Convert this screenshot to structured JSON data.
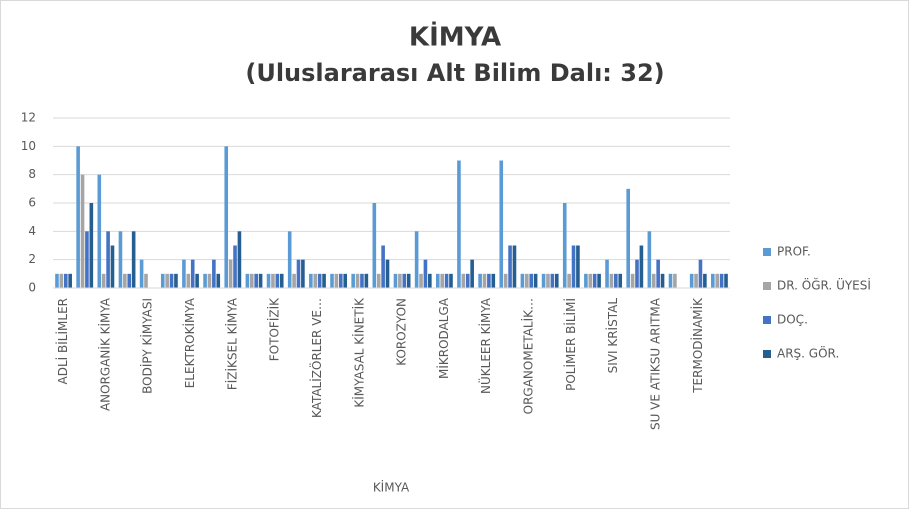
{
  "chart_data": {
    "type": "bar",
    "title": "KİMYA",
    "subtitle": "(Uluslararası Alt Bilim Dalı: 32)",
    "x_label": "KİMYA",
    "categories": [
      "ADLİ BİLİMLER",
      null,
      "ANORGANİK KİMYA",
      null,
      "BODİPY KİMYASI",
      null,
      "ELEKTROKİMYA",
      null,
      "FİZİKSEL KİMYA",
      null,
      "FOTOFİZİK",
      null,
      "KATALİZÖRLER VE…",
      null,
      "KİMYASAL KİNETİK",
      null,
      "KOROZYON",
      null,
      "MİKRODALGA",
      null,
      "NÜKLEER KİMYA",
      null,
      "ORGANOMETALİK…",
      null,
      "POLİMER BİLİMİ",
      null,
      "SIVI KRİSTAL",
      null,
      "SU VE ATIKSU ARITMA",
      null,
      "TERMODİNAMİK",
      null
    ],
    "series": [
      {
        "name": "PROF.",
        "color": "#5b9bd5",
        "values": [
          1,
          10,
          8,
          4,
          2,
          1,
          2,
          1,
          10,
          1,
          1,
          4,
          1,
          1,
          1,
          6,
          1,
          4,
          1,
          9,
          1,
          9,
          1,
          1,
          6,
          1,
          2,
          7,
          4,
          1,
          1,
          1
        ]
      },
      {
        "name": "DR. ÖĞR. ÜYESİ",
        "color": "#a5a5a5",
        "values": [
          1,
          8,
          1,
          1,
          1,
          1,
          1,
          1,
          2,
          1,
          1,
          1,
          1,
          1,
          1,
          1,
          1,
          1,
          1,
          1,
          1,
          1,
          1,
          1,
          1,
          1,
          1,
          1,
          1,
          1,
          1,
          1
        ]
      },
      {
        "name": "DOÇ.",
        "color": "#4472c4",
        "values": [
          1,
          4,
          4,
          1,
          0,
          1,
          2,
          2,
          3,
          1,
          1,
          2,
          1,
          1,
          1,
          3,
          1,
          2,
          1,
          1,
          1,
          3,
          1,
          1,
          3,
          1,
          1,
          2,
          2,
          0,
          2,
          1
        ]
      },
      {
        "name": "ARŞ. GÖR.",
        "color": "#255e91",
        "values": [
          1,
          6,
          3,
          4,
          0,
          1,
          1,
          1,
          4,
          1,
          1,
          2,
          1,
          1,
          1,
          2,
          1,
          1,
          1,
          2,
          1,
          3,
          1,
          1,
          3,
          1,
          1,
          3,
          1,
          0,
          1,
          1
        ]
      }
    ],
    "ylim": [
      0,
      12
    ],
    "yticks": [
      0,
      2,
      4,
      6,
      8,
      10,
      12
    ],
    "grid": true,
    "legend": "right"
  }
}
